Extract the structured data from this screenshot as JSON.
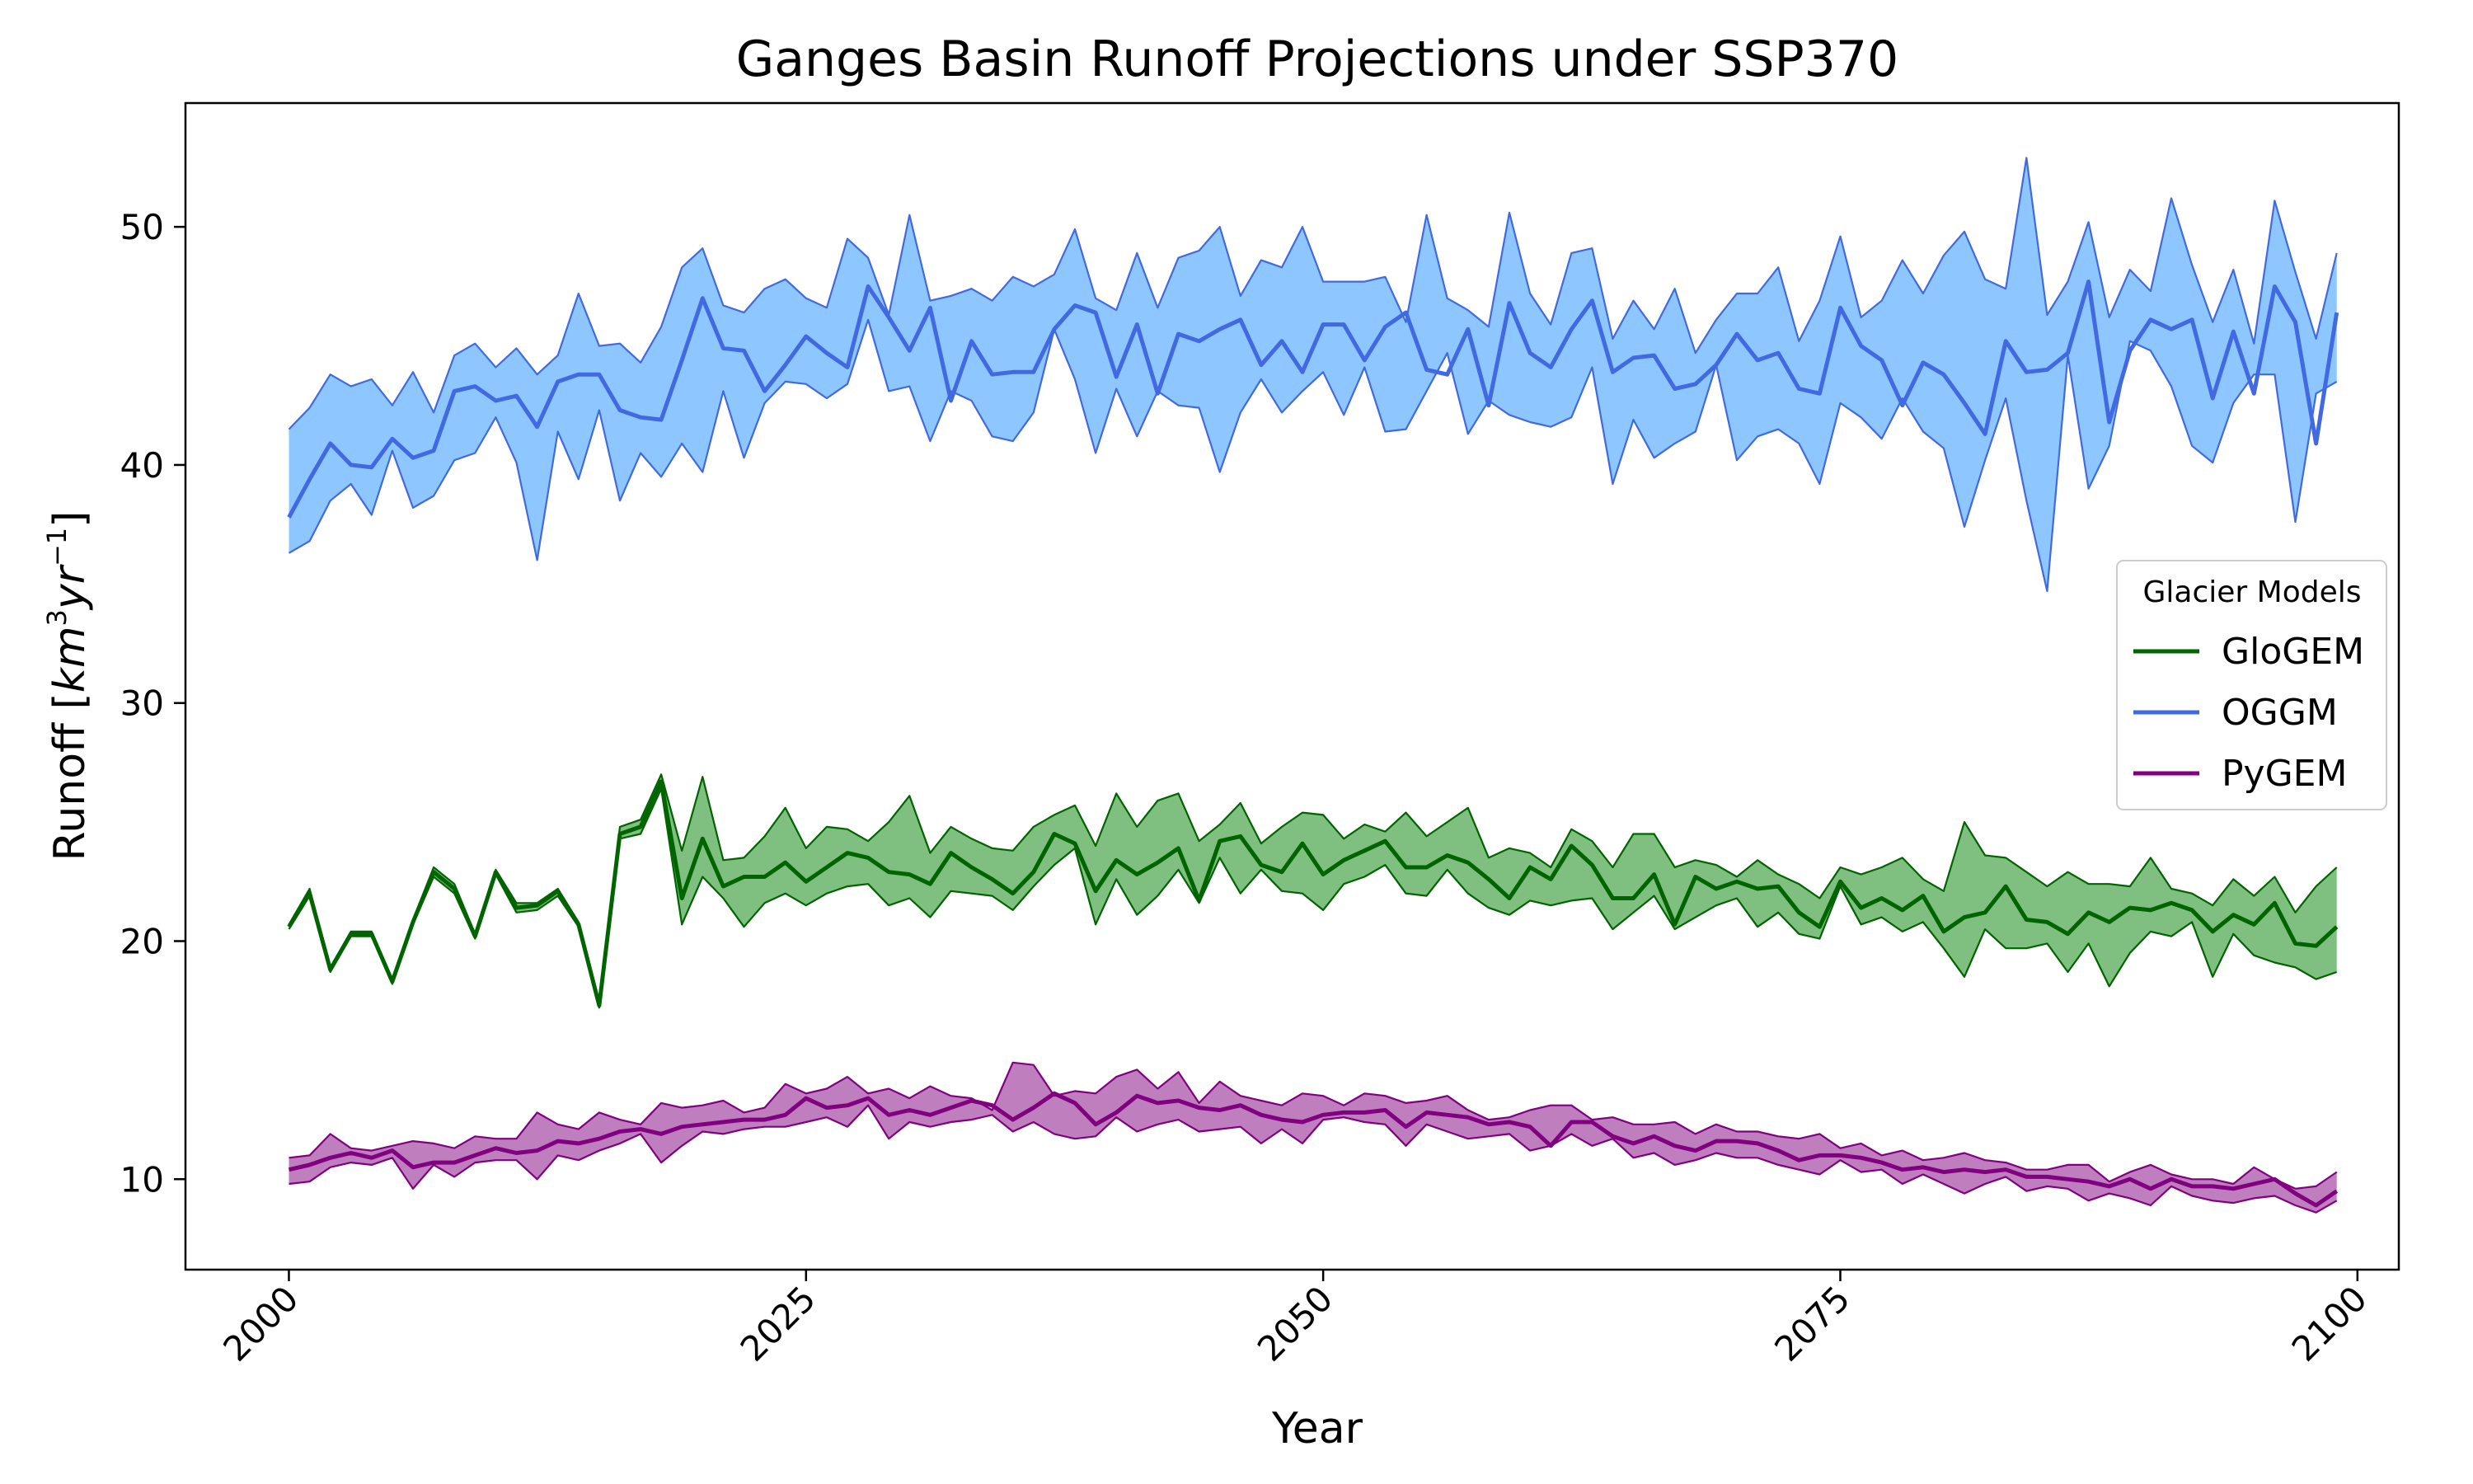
{
  "chart_data": {
    "type": "line",
    "title": "Ganges Basin Runoff Projections under SSP370",
    "xlabel": "Year",
    "ylabel_main": "Runoff [",
    "ylabel_unit_km": "km",
    "ylabel_unit_exp1": "3",
    "ylabel_unit_yr": "yr",
    "ylabel_unit_exp2": "−1",
    "ylabel_close": "]",
    "xlim": [
      1995,
      2102
    ],
    "ylim": [
      6.2,
      55.2
    ],
    "xticks": [
      2000,
      2025,
      2050,
      2075,
      2100
    ],
    "yticks": [
      10,
      20,
      30,
      40,
      50
    ],
    "legend": {
      "title": "Glacier Models",
      "position": "center-right"
    },
    "x_start": 2000,
    "series": [
      {
        "name": "GloGEM",
        "line_color": "#006400",
        "fill_color": "#008000",
        "mean": [
          20.6,
          22.0,
          18.8,
          20.3,
          20.3,
          18.3,
          20.8,
          22.9,
          22.2,
          20.2,
          22.9,
          21.4,
          21.5,
          22.1,
          20.7,
          17.3,
          24.5,
          24.8,
          26.7,
          21.8,
          24.3,
          22.3,
          22.7,
          22.7,
          23.3,
          22.5,
          23.1,
          23.7,
          23.5,
          22.9,
          22.8,
          22.4,
          23.7,
          23.1,
          22.6,
          22.0,
          22.9,
          24.5,
          24.1,
          22.1,
          23.4,
          22.8,
          23.3,
          23.9,
          21.7,
          24.2,
          24.4,
          23.2,
          22.9,
          24.1,
          22.8,
          23.4,
          23.8,
          24.2,
          23.1,
          23.1,
          23.6,
          23.3,
          22.6,
          21.8,
          23.1,
          22.6,
          24.0,
          23.2,
          21.8,
          21.8,
          22.8,
          20.7,
          22.7,
          22.2,
          22.5,
          22.2,
          22.3,
          21.2,
          20.6,
          22.5,
          21.4,
          21.8,
          21.3,
          21.9,
          20.4,
          21.0,
          21.2,
          22.3,
          20.9,
          20.8,
          20.3,
          21.2,
          20.8,
          21.4,
          21.3,
          21.6,
          21.3,
          20.4,
          21.1,
          20.7,
          21.6,
          19.9,
          19.8,
          20.6
        ],
        "upper": [
          20.7,
          22.2,
          18.9,
          20.4,
          20.4,
          18.4,
          20.9,
          23.1,
          22.4,
          20.3,
          23.0,
          21.6,
          21.6,
          22.2,
          20.8,
          17.4,
          24.8,
          25.1,
          27.0,
          23.8,
          26.9,
          23.4,
          23.5,
          24.4,
          25.6,
          23.9,
          24.8,
          24.7,
          24.2,
          25.0,
          26.1,
          23.7,
          24.8,
          24.3,
          23.9,
          23.8,
          24.8,
          25.3,
          25.7,
          24.0,
          26.2,
          24.8,
          25.9,
          26.2,
          24.2,
          24.9,
          25.8,
          24.1,
          24.8,
          25.4,
          25.3,
          24.3,
          24.9,
          24.6,
          25.4,
          24.4,
          25.0,
          25.6,
          23.5,
          23.9,
          23.7,
          23.1,
          24.7,
          24.2,
          23.1,
          24.5,
          24.5,
          23.1,
          23.4,
          23.2,
          22.7,
          23.4,
          22.8,
          22.4,
          21.8,
          23.1,
          22.8,
          23.1,
          23.5,
          22.6,
          22.1,
          25.0,
          23.6,
          23.5,
          22.9,
          22.3,
          22.9,
          22.4,
          22.4,
          22.3,
          23.5,
          22.2,
          22.0,
          21.5,
          22.6,
          21.9,
          22.7,
          21.2,
          22.3,
          23.1
        ],
        "lower": [
          20.5,
          21.9,
          18.7,
          20.2,
          20.2,
          18.2,
          20.7,
          22.7,
          22.0,
          20.1,
          22.8,
          21.2,
          21.3,
          21.9,
          20.6,
          17.2,
          24.3,
          24.5,
          26.4,
          20.7,
          22.7,
          21.8,
          20.6,
          21.6,
          22.0,
          21.5,
          22.0,
          22.3,
          22.4,
          21.5,
          21.8,
          21.0,
          22.1,
          22.0,
          21.9,
          21.3,
          22.3,
          23.2,
          23.9,
          20.7,
          22.6,
          21.1,
          21.9,
          23.0,
          21.6,
          23.5,
          22.0,
          23.0,
          22.1,
          22.0,
          21.3,
          22.4,
          22.7,
          23.2,
          22.0,
          21.9,
          23.0,
          22.0,
          21.4,
          21.1,
          21.7,
          21.5,
          21.7,
          21.8,
          20.5,
          21.2,
          21.9,
          20.5,
          21.0,
          21.5,
          21.8,
          20.6,
          21.2,
          20.3,
          20.1,
          22.3,
          20.7,
          21.0,
          20.4,
          20.8,
          19.7,
          18.5,
          20.5,
          19.7,
          19.7,
          19.9,
          18.7,
          19.9,
          18.1,
          19.5,
          20.4,
          20.2,
          20.8,
          18.5,
          20.3,
          19.4,
          19.1,
          18.9,
          18.4,
          18.7
        ]
      },
      {
        "name": "OGGM",
        "line_color": "#4169E1",
        "fill_color": "#1E90FF",
        "mean": [
          37.8,
          39.4,
          40.9,
          40.0,
          39.9,
          41.1,
          40.3,
          40.6,
          43.1,
          43.3,
          42.7,
          42.9,
          41.6,
          43.5,
          43.8,
          43.8,
          42.3,
          42.0,
          41.9,
          44.4,
          47.0,
          44.9,
          44.8,
          43.1,
          44.2,
          45.4,
          44.7,
          44.1,
          47.5,
          46.2,
          44.8,
          46.6,
          42.7,
          45.2,
          43.8,
          43.9,
          43.9,
          45.7,
          46.7,
          46.4,
          43.7,
          45.9,
          43.0,
          45.5,
          45.2,
          45.7,
          46.1,
          44.2,
          45.2,
          43.9,
          45.9,
          45.9,
          44.4,
          45.8,
          46.4,
          44.0,
          43.8,
          45.7,
          42.5,
          46.8,
          44.7,
          44.1,
          45.7,
          46.9,
          43.9,
          44.5,
          44.6,
          43.2,
          43.4,
          44.2,
          45.5,
          44.4,
          44.7,
          43.2,
          43.0,
          46.6,
          45.0,
          44.4,
          42.5,
          44.3,
          43.8,
          42.6,
          41.3,
          45.2,
          43.9,
          44.0,
          44.7,
          47.7,
          41.8,
          44.8,
          46.1,
          45.7,
          46.1,
          42.8,
          45.6,
          43.0,
          47.5,
          46.0,
          40.9,
          46.4
        ],
        "upper": [
          41.5,
          42.4,
          43.8,
          43.3,
          43.6,
          42.5,
          43.9,
          42.2,
          44.6,
          45.1,
          44.1,
          44.9,
          43.8,
          44.6,
          47.2,
          45.0,
          45.1,
          44.3,
          45.8,
          48.3,
          49.1,
          46.7,
          46.4,
          47.4,
          47.8,
          47.0,
          46.6,
          49.5,
          48.7,
          46.3,
          50.5,
          46.9,
          47.1,
          47.4,
          46.9,
          47.9,
          47.5,
          48.0,
          49.9,
          47.0,
          46.5,
          48.9,
          46.6,
          48.7,
          49.0,
          50.0,
          47.1,
          48.6,
          48.3,
          50.0,
          47.7,
          47.7,
          47.7,
          47.9,
          46.0,
          50.5,
          47.0,
          46.5,
          45.8,
          50.6,
          47.2,
          45.9,
          48.9,
          49.1,
          45.3,
          46.9,
          45.7,
          47.4,
          44.7,
          46.1,
          47.2,
          47.2,
          48.3,
          45.2,
          46.9,
          49.6,
          46.2,
          46.9,
          48.6,
          47.2,
          48.8,
          49.8,
          47.8,
          47.4,
          52.9,
          46.3,
          47.7,
          50.2,
          46.2,
          48.2,
          47.3,
          51.2,
          48.4,
          46.0,
          48.2,
          45.1,
          51.1,
          48.1,
          45.3,
          48.9
        ],
        "lower": [
          36.3,
          36.8,
          38.5,
          39.2,
          37.9,
          40.6,
          38.2,
          38.7,
          40.2,
          40.5,
          42.0,
          40.1,
          36.0,
          41.4,
          39.4,
          42.3,
          38.5,
          40.5,
          39.5,
          40.9,
          39.7,
          43.1,
          40.3,
          42.6,
          43.5,
          43.4,
          42.8,
          43.4,
          46.1,
          43.1,
          43.3,
          41.0,
          43.1,
          42.7,
          41.2,
          41.0,
          42.2,
          45.7,
          43.6,
          40.5,
          43.2,
          41.2,
          43.1,
          42.5,
          42.4,
          39.7,
          42.2,
          43.6,
          42.2,
          43.1,
          43.9,
          42.1,
          44.1,
          41.4,
          41.5,
          43.1,
          44.7,
          41.3,
          42.7,
          42.1,
          41.8,
          41.6,
          42.0,
          44.1,
          39.2,
          41.9,
          40.3,
          40.9,
          41.4,
          44.2,
          40.2,
          41.2,
          41.5,
          40.9,
          39.2,
          42.6,
          42.0,
          41.1,
          42.8,
          41.4,
          40.7,
          37.4,
          40.2,
          42.8,
          38.5,
          34.7,
          44.6,
          39.0,
          40.8,
          45.2,
          44.8,
          43.3,
          40.8,
          40.1,
          42.6,
          43.8,
          43.8,
          37.6,
          43.0,
          43.5
        ],
        "bump_note": ""
      },
      {
        "name": "PyGEM",
        "line_color": "#800080",
        "fill_color": "#800080",
        "mean": [
          10.4,
          10.6,
          10.9,
          11.1,
          10.9,
          11.2,
          10.5,
          10.7,
          10.7,
          11.0,
          11.3,
          11.1,
          11.2,
          11.6,
          11.5,
          11.7,
          12.0,
          12.1,
          11.9,
          12.2,
          12.3,
          12.4,
          12.5,
          12.5,
          12.7,
          13.4,
          13.0,
          13.1,
          13.4,
          12.7,
          12.9,
          12.7,
          13.0,
          13.3,
          13.1,
          12.5,
          13.0,
          13.6,
          13.2,
          12.3,
          12.8,
          13.5,
          13.2,
          13.3,
          13.0,
          12.9,
          13.1,
          12.7,
          12.5,
          12.4,
          12.7,
          12.8,
          12.8,
          12.9,
          12.2,
          12.8,
          12.7,
          12.6,
          12.3,
          12.4,
          12.2,
          11.4,
          12.4,
          12.4,
          11.8,
          11.5,
          11.8,
          11.4,
          11.2,
          11.6,
          11.6,
          11.5,
          11.2,
          10.8,
          11.0,
          11.0,
          10.9,
          10.7,
          10.4,
          10.5,
          10.3,
          10.4,
          10.3,
          10.4,
          10.1,
          10.1,
          10.0,
          9.9,
          9.7,
          10.0,
          9.6,
          10.0,
          9.7,
          9.7,
          9.6,
          9.8,
          10.0,
          9.4,
          8.9,
          9.5
        ],
        "upper": [
          10.9,
          11.0,
          11.9,
          11.3,
          11.2,
          11.4,
          11.6,
          11.5,
          11.3,
          11.8,
          11.7,
          11.7,
          12.8,
          12.3,
          12.1,
          12.8,
          12.5,
          12.3,
          13.2,
          13.0,
          13.1,
          13.3,
          12.8,
          13.0,
          14.0,
          13.6,
          13.8,
          14.3,
          13.6,
          13.8,
          13.4,
          13.9,
          13.5,
          13.4,
          12.9,
          14.9,
          14.8,
          13.5,
          13.7,
          13.6,
          14.3,
          14.6,
          13.8,
          14.5,
          13.2,
          14.1,
          13.5,
          13.3,
          13.1,
          13.6,
          13.5,
          13.1,
          13.6,
          13.5,
          13.2,
          13.3,
          13.5,
          12.9,
          12.5,
          12.6,
          12.9,
          13.1,
          13.1,
          12.5,
          12.6,
          12.3,
          12.3,
          12.4,
          11.9,
          12.3,
          12.0,
          12.0,
          11.8,
          11.7,
          11.9,
          11.3,
          11.5,
          11.0,
          11.2,
          10.8,
          10.9,
          11.1,
          10.8,
          10.7,
          10.4,
          10.4,
          10.6,
          10.6,
          9.9,
          10.3,
          10.6,
          10.2,
          10.0,
          10.0,
          9.8,
          10.5,
          10.0,
          9.6,
          9.7,
          10.3
        ],
        "lower": [
          9.8,
          9.9,
          10.5,
          10.7,
          10.6,
          10.9,
          9.6,
          10.6,
          10.1,
          10.7,
          10.8,
          10.8,
          10.0,
          11.0,
          10.8,
          11.2,
          11.5,
          11.9,
          10.7,
          11.4,
          12.0,
          11.9,
          12.1,
          12.2,
          12.2,
          12.4,
          12.6,
          12.2,
          13.1,
          11.7,
          12.4,
          12.2,
          12.4,
          12.5,
          12.7,
          12.0,
          12.4,
          11.9,
          11.7,
          11.8,
          12.6,
          12.0,
          12.3,
          12.5,
          12.0,
          12.1,
          12.2,
          11.5,
          12.1,
          11.5,
          12.5,
          12.6,
          12.4,
          12.3,
          11.4,
          12.3,
          12.0,
          11.7,
          11.8,
          11.9,
          11.2,
          11.4,
          11.9,
          11.4,
          11.7,
          10.9,
          11.1,
          10.6,
          10.8,
          11.1,
          10.9,
          10.9,
          10.6,
          10.4,
          10.2,
          10.8,
          10.3,
          10.4,
          9.8,
          10.2,
          9.8,
          9.4,
          9.8,
          10.1,
          9.5,
          9.7,
          9.6,
          9.1,
          9.4,
          9.2,
          8.9,
          9.7,
          9.3,
          9.1,
          9.0,
          9.2,
          9.3,
          8.9,
          8.6,
          9.1
        ]
      }
    ]
  }
}
